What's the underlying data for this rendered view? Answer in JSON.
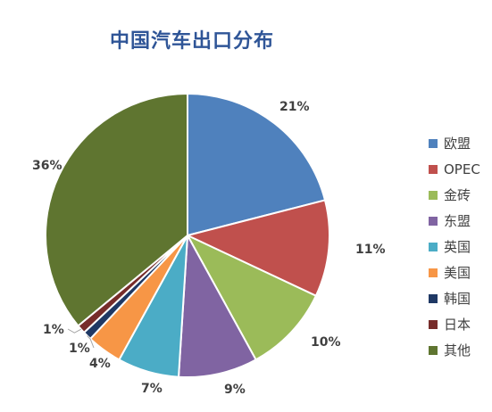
{
  "chart_data": {
    "type": "pie",
    "title": "中国汽车出口分布",
    "categories": [
      "欧盟",
      "OPEC",
      "金砖",
      "东盟",
      "英国",
      "美国",
      "韩国",
      "日本",
      "其他"
    ],
    "values": [
      21,
      11,
      10,
      9,
      7,
      4,
      1,
      1,
      36
    ],
    "labels": [
      "21%",
      "11%",
      "10%",
      "9%",
      "7%",
      "4%",
      "1%",
      "1%",
      "36%"
    ],
    "colors": [
      "#4f81bd",
      "#c0504d",
      "#9bbb59",
      "#8064a2",
      "#4bacc6",
      "#f79646",
      "#1f3864",
      "#772c2a",
      "#5f7530"
    ],
    "legend_position": "right"
  }
}
